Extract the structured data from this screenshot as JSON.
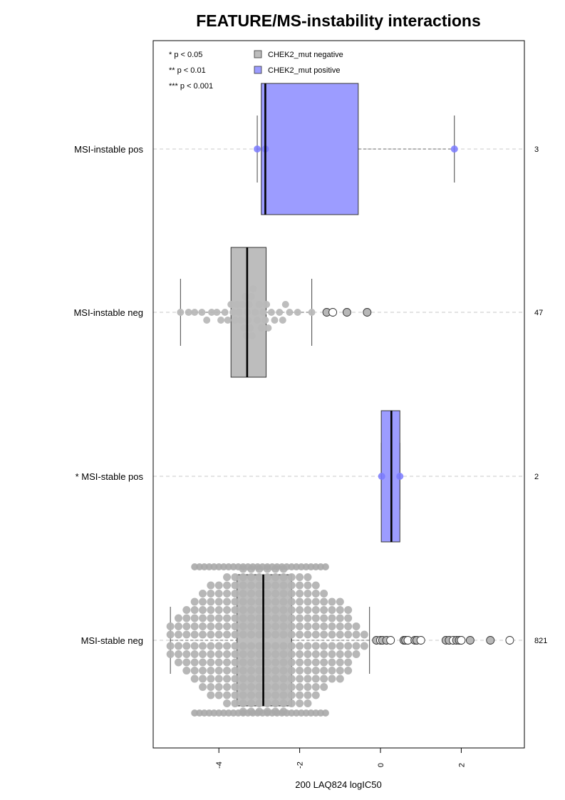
{
  "chart_data": {
    "type": "box",
    "orientation": "horizontal",
    "title": "FEATURE/MS-instability interactions",
    "xlabel": "200 LAQ824 logIC50",
    "xlim": [
      -5.35,
      3.5
    ],
    "x_ticks": [
      -4,
      -2,
      0,
      2
    ],
    "x_tick_labels": [
      "-4",
      "-2",
      "0",
      "2"
    ],
    "grid": "dashed horizontal line per group",
    "legend": {
      "position": "top-left",
      "significance": [
        "* p < 0.05",
        "** p < 0.01",
        "*** p < 0.001"
      ],
      "entries": [
        {
          "label": "CHEK2_mut negative",
          "color": "#bdbdbd"
        },
        {
          "label": "CHEK2_mut positive",
          "color": "#9c9cff"
        }
      ]
    },
    "groups": [
      {
        "label": "MSI-instable pos",
        "n": "3",
        "color": "#9c9cff",
        "box": {
          "q1": -2.95,
          "median": -2.85,
          "q3": -0.55,
          "whisker_low": -3.05,
          "whisker_high": 1.83
        },
        "points": [
          -3.05,
          -2.85,
          1.83
        ],
        "outliers": []
      },
      {
        "label": "MSI-instable neg",
        "n": "47",
        "color": "#bdbdbd",
        "box": {
          "q1": -3.7,
          "median": -3.3,
          "q3": -2.83,
          "whisker_low": -4.95,
          "whisker_high": -1.7
        },
        "points": [
          -4.95,
          -4.75,
          -4.6,
          -4.42,
          -4.3,
          -4.18,
          -4.05,
          -3.95,
          -3.85,
          -3.78,
          -3.7,
          -3.65,
          -3.6,
          -3.55,
          -3.5,
          -3.45,
          -3.42,
          -3.38,
          -3.35,
          -3.32,
          -3.3,
          -3.28,
          -3.25,
          -3.22,
          -3.2,
          -3.18,
          -3.15,
          -3.1,
          -3.05,
          -3.0,
          -2.95,
          -2.9,
          -2.85,
          -2.82,
          -2.78,
          -2.7,
          -2.62,
          -2.5,
          -2.42,
          -2.35,
          -2.25,
          -2.05,
          -1.7
        ],
        "outliers": [
          -1.33,
          -1.18,
          -0.83,
          -0.33
        ]
      },
      {
        "label": "* MSI-stable pos",
        "n": "2",
        "color": "#9c9cff",
        "box": {
          "q1": 0.02,
          "median": 0.27,
          "q3": 0.48,
          "whisker_low": 0.02,
          "whisker_high": 0.48
        },
        "points": [
          0.03,
          0.48
        ],
        "outliers": []
      },
      {
        "label": "MSI-stable neg",
        "n": "821",
        "color": "#bdbdbd",
        "box": {
          "q1": -3.55,
          "median": -2.9,
          "q3": -2.2,
          "whisker_low": -5.2,
          "whisker_high": -0.27
        },
        "dense_range": [
          -5.2,
          -0.3
        ],
        "outliers": [
          -0.1,
          0.0,
          0.05,
          0.15,
          0.25,
          0.58,
          0.62,
          0.68,
          0.85,
          0.9,
          1.0,
          1.62,
          1.7,
          1.8,
          1.88,
          1.95,
          2.0,
          2.22,
          2.72,
          3.2
        ]
      }
    ]
  }
}
